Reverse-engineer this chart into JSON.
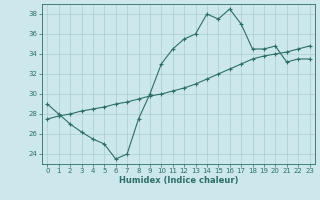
{
  "xlabel": "Humidex (Indice chaleur)",
  "ylabel": "",
  "bg_color": "#cce8ec",
  "grid_color": "#aacccc",
  "line_color": "#2e6e68",
  "xlim": [
    -0.5,
    23.5
  ],
  "ylim": [
    23.0,
    39.0
  ],
  "xticks": [
    0,
    1,
    2,
    3,
    4,
    5,
    6,
    7,
    8,
    9,
    10,
    11,
    12,
    13,
    14,
    15,
    16,
    17,
    18,
    19,
    20,
    21,
    22,
    23
  ],
  "yticks": [
    24,
    26,
    28,
    30,
    32,
    34,
    36,
    38
  ],
  "curve1_x": [
    0,
    1,
    2,
    3,
    4,
    5,
    6,
    7,
    8,
    9,
    10,
    11,
    12,
    13,
    14,
    15,
    16,
    17,
    18,
    19,
    20,
    21,
    22,
    23
  ],
  "curve1_y": [
    29.0,
    28.0,
    27.0,
    26.2,
    25.5,
    25.0,
    23.5,
    24.0,
    27.5,
    30.0,
    33.0,
    34.5,
    35.5,
    36.0,
    38.0,
    37.5,
    38.5,
    37.0,
    34.5,
    34.5,
    34.8,
    33.2,
    33.5,
    33.5
  ],
  "curve2_x": [
    0,
    1,
    2,
    3,
    4,
    5,
    6,
    7,
    8,
    9,
    10,
    11,
    12,
    13,
    14,
    15,
    16,
    17,
    18,
    19,
    20,
    21,
    22,
    23
  ],
  "curve2_y": [
    27.5,
    27.8,
    28.0,
    28.3,
    28.5,
    28.7,
    29.0,
    29.2,
    29.5,
    29.8,
    30.0,
    30.3,
    30.6,
    31.0,
    31.5,
    32.0,
    32.5,
    33.0,
    33.5,
    33.8,
    34.0,
    34.2,
    34.5,
    34.8
  ]
}
